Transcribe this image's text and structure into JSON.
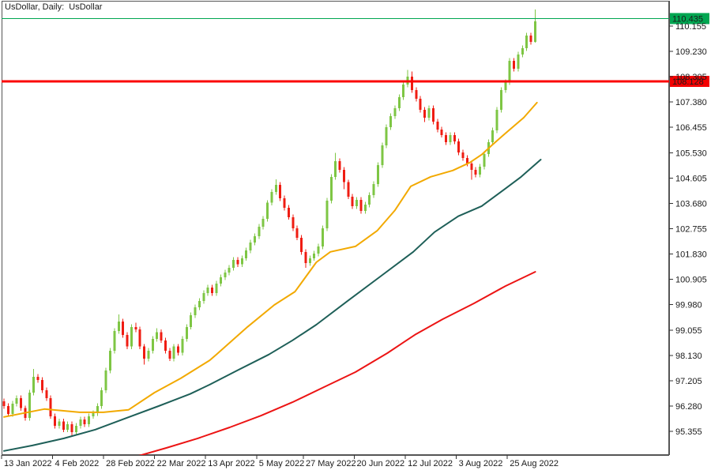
{
  "window": {
    "title": "UsDollar, Daily:  UsDollar"
  },
  "colors": {
    "background": "#FFFFFF",
    "border": "#555555",
    "candle_up": "#7EC644",
    "candle_down": "#EF1C12",
    "ma_fast": "#F2A900",
    "ma_mid": "#1E5F58",
    "ma_slow": "#EC1414",
    "level_green": "#00A651",
    "level_red": "#FB0505",
    "badge_green_bg": "#00A651",
    "badge_red_bg": "#F40000",
    "badge_text": "#FFFFFF",
    "axis_text": "#1a1a1a"
  },
  "chart_data": {
    "type": "candlestick",
    "symbol": "UsDollar",
    "timeframe": "Daily",
    "price_range": [
      94.49,
      110.645
    ],
    "y_axis": {
      "tick_labels": [
        "110.155",
        "109.230",
        "108.305",
        "107.380",
        "106.455",
        "105.530",
        "104.605",
        "103.680",
        "102.755",
        "101.830",
        "100.905",
        "99.980",
        "99.055",
        "98.130",
        "97.205",
        "96.280",
        "95.355"
      ]
    },
    "x_axis": {
      "labels": [
        {
          "text": "13 Jan 2022",
          "bar": 0
        },
        {
          "text": "4 Feb 2022",
          "bar": 12
        },
        {
          "text": "28 Feb 2022",
          "bar": 24
        },
        {
          "text": "22 Mar 2022",
          "bar": 36
        },
        {
          "text": "13 Apr 2022",
          "bar": 48
        },
        {
          "text": "5 May 2022",
          "bar": 60
        },
        {
          "text": "27 May 2022",
          "bar": 71
        },
        {
          "text": "20 Jun 2022",
          "bar": 83
        },
        {
          "text": "12 Jul 2022",
          "bar": 95
        },
        {
          "text": "3 Aug 2022",
          "bar": 107
        },
        {
          "text": "25 Aug 2022",
          "bar": 119
        }
      ]
    },
    "levels": [
      {
        "value": 110.435,
        "label": "110.435",
        "color_key": "level_green",
        "badge_key": "badge_green_bg",
        "width": 1
      },
      {
        "value": 108.128,
        "label": "108.128",
        "color_key": "level_red",
        "badge_key": "badge_red_bg",
        "width": 3
      }
    ],
    "candles": [
      [
        96.45,
        96.55,
        96.18,
        96.28
      ],
      [
        96.28,
        96.38,
        95.89,
        95.99
      ],
      [
        95.99,
        96.47,
        95.89,
        96.37
      ],
      [
        96.37,
        96.67,
        96.27,
        96.57
      ],
      [
        96.57,
        96.67,
        96.1,
        96.2
      ],
      [
        96.2,
        96.3,
        95.75,
        95.85
      ],
      [
        95.85,
        96.87,
        95.75,
        96.77
      ],
      [
        96.77,
        97.63,
        96.67,
        97.35
      ],
      [
        97.35,
        97.45,
        97.13,
        97.23
      ],
      [
        97.23,
        97.33,
        96.76,
        96.86
      ],
      [
        96.86,
        96.96,
        96.47,
        96.57
      ],
      [
        96.57,
        96.67,
        95.81,
        95.91
      ],
      [
        95.91,
        96.01,
        95.46,
        95.56
      ],
      [
        95.56,
        95.81,
        95.46,
        95.71
      ],
      [
        95.71,
        95.81,
        95.32,
        95.42
      ],
      [
        95.42,
        95.72,
        95.32,
        95.62
      ],
      [
        95.62,
        95.72,
        95.18,
        95.33
      ],
      [
        95.33,
        95.66,
        95.23,
        95.56
      ],
      [
        95.56,
        95.89,
        95.46,
        95.79
      ],
      [
        95.79,
        95.89,
        95.52,
        95.62
      ],
      [
        95.62,
        96.01,
        95.52,
        95.91
      ],
      [
        95.91,
        96.12,
        95.81,
        96.02
      ],
      [
        96.02,
        96.38,
        95.92,
        96.28
      ],
      [
        96.28,
        96.96,
        96.18,
        96.86
      ],
      [
        96.86,
        97.68,
        96.76,
        97.58
      ],
      [
        97.58,
        98.4,
        97.48,
        98.3
      ],
      [
        98.3,
        99.12,
        98.2,
        99.02
      ],
      [
        99.02,
        99.62,
        98.92,
        99.37
      ],
      [
        99.37,
        99.47,
        98.78,
        98.88
      ],
      [
        98.88,
        98.98,
        98.35,
        98.45
      ],
      [
        98.45,
        99.27,
        98.35,
        99.17
      ],
      [
        99.17,
        99.32,
        98.98,
        99.08
      ],
      [
        99.08,
        99.18,
        98.35,
        98.45
      ],
      [
        98.45,
        98.55,
        97.8,
        98.01
      ],
      [
        98.01,
        98.4,
        97.91,
        98.3
      ],
      [
        98.3,
        98.83,
        98.2,
        98.73
      ],
      [
        98.73,
        99.12,
        98.63,
        98.97
      ],
      [
        98.97,
        99.07,
        98.58,
        98.68
      ],
      [
        98.68,
        98.78,
        98.2,
        98.3
      ],
      [
        98.3,
        98.4,
        97.92,
        98.01
      ],
      [
        98.01,
        98.55,
        97.91,
        98.45
      ],
      [
        98.45,
        98.55,
        98.12,
        98.22
      ],
      [
        98.22,
        98.83,
        98.12,
        98.73
      ],
      [
        98.73,
        99.27,
        98.63,
        99.17
      ],
      [
        99.17,
        99.7,
        99.07,
        99.6
      ],
      [
        99.6,
        99.99,
        99.5,
        99.89
      ],
      [
        99.89,
        100.22,
        99.79,
        100.12
      ],
      [
        100.12,
        100.51,
        100.02,
        100.41
      ],
      [
        100.41,
        100.71,
        100.31,
        100.61
      ],
      [
        100.61,
        100.71,
        100.31,
        100.41
      ],
      [
        100.41,
        100.85,
        100.31,
        100.75
      ],
      [
        100.75,
        101.08,
        100.65,
        100.98
      ],
      [
        100.98,
        101.26,
        100.88,
        101.16
      ],
      [
        101.16,
        101.43,
        101.06,
        101.33
      ],
      [
        101.33,
        101.72,
        101.23,
        101.62
      ],
      [
        101.62,
        101.72,
        101.35,
        101.45
      ],
      [
        101.45,
        101.78,
        101.35,
        101.68
      ],
      [
        101.68,
        102.06,
        101.58,
        101.96
      ],
      [
        101.96,
        102.35,
        101.86,
        102.25
      ],
      [
        102.25,
        102.58,
        102.15,
        102.48
      ],
      [
        102.48,
        102.93,
        102.38,
        102.83
      ],
      [
        102.83,
        103.22,
        102.73,
        103.12
      ],
      [
        103.12,
        103.8,
        103.02,
        103.7
      ],
      [
        103.7,
        104.2,
        103.6,
        104.1
      ],
      [
        104.1,
        104.56,
        104.0,
        104.36
      ],
      [
        104.36,
        104.46,
        103.77,
        103.87
      ],
      [
        103.87,
        103.97,
        103.42,
        103.52
      ],
      [
        103.52,
        103.62,
        103.08,
        103.18
      ],
      [
        103.18,
        103.28,
        102.67,
        102.77
      ],
      [
        102.77,
        102.87,
        102.33,
        102.43
      ],
      [
        102.43,
        102.53,
        101.81,
        101.91
      ],
      [
        101.91,
        102.01,
        101.33,
        101.5
      ],
      [
        101.5,
        101.78,
        101.4,
        101.68
      ],
      [
        101.68,
        101.95,
        101.58,
        101.85
      ],
      [
        101.85,
        102.21,
        101.75,
        102.11
      ],
      [
        102.11,
        102.87,
        102.01,
        102.77
      ],
      [
        102.77,
        103.88,
        102.67,
        103.78
      ],
      [
        103.78,
        104.75,
        103.68,
        104.65
      ],
      [
        104.65,
        105.52,
        104.55,
        105.22
      ],
      [
        105.22,
        105.32,
        104.81,
        104.91
      ],
      [
        104.91,
        105.01,
        104.2,
        104.45
      ],
      [
        104.45,
        104.55,
        103.83,
        103.93
      ],
      [
        103.93,
        104.03,
        103.48,
        103.58
      ],
      [
        103.58,
        103.91,
        103.48,
        103.81
      ],
      [
        103.81,
        103.91,
        103.31,
        103.41
      ],
      [
        103.41,
        103.74,
        103.31,
        103.64
      ],
      [
        103.64,
        104.08,
        103.54,
        103.98
      ],
      [
        103.98,
        104.49,
        103.88,
        104.39
      ],
      [
        104.39,
        105.18,
        104.29,
        105.08
      ],
      [
        105.08,
        105.9,
        104.98,
        105.8
      ],
      [
        105.8,
        106.56,
        105.7,
        106.46
      ],
      [
        106.46,
        106.97,
        106.36,
        106.87
      ],
      [
        106.87,
        107.26,
        106.77,
        107.16
      ],
      [
        107.16,
        107.66,
        107.06,
        107.56
      ],
      [
        107.56,
        108.12,
        107.46,
        108.02
      ],
      [
        108.02,
        108.56,
        107.92,
        108.31
      ],
      [
        108.31,
        108.5,
        107.72,
        107.82
      ],
      [
        107.82,
        107.92,
        107.4,
        107.5
      ],
      [
        107.5,
        107.6,
        107.0,
        107.1
      ],
      [
        107.1,
        107.2,
        106.65,
        106.81
      ],
      [
        106.81,
        107.26,
        106.71,
        107.16
      ],
      [
        107.16,
        107.26,
        106.57,
        106.67
      ],
      [
        106.67,
        106.77,
        106.28,
        106.38
      ],
      [
        106.38,
        106.48,
        106.08,
        106.18
      ],
      [
        106.18,
        106.28,
        105.82,
        105.92
      ],
      [
        105.92,
        106.28,
        105.82,
        106.18
      ],
      [
        106.18,
        106.28,
        105.84,
        105.94
      ],
      [
        105.94,
        106.04,
        105.44,
        105.54
      ],
      [
        105.54,
        105.64,
        105.24,
        105.34
      ],
      [
        105.34,
        105.44,
        105.04,
        105.14
      ],
      [
        105.14,
        105.24,
        104.55,
        104.91
      ],
      [
        104.91,
        105.01,
        104.63,
        104.73
      ],
      [
        104.73,
        105.12,
        104.63,
        105.02
      ],
      [
        105.02,
        105.58,
        104.92,
        105.48
      ],
      [
        105.48,
        106.02,
        105.38,
        105.92
      ],
      [
        105.92,
        106.45,
        105.82,
        106.35
      ],
      [
        106.35,
        107.2,
        106.25,
        107.1
      ],
      [
        107.1,
        107.92,
        107.0,
        107.82
      ],
      [
        107.82,
        108.21,
        107.72,
        108.11
      ],
      [
        108.11,
        108.99,
        108.01,
        108.89
      ],
      [
        108.89,
        108.99,
        108.5,
        108.6
      ],
      [
        108.6,
        109.22,
        108.5,
        109.12
      ],
      [
        109.12,
        109.45,
        109.02,
        109.35
      ],
      [
        109.35,
        109.91,
        109.25,
        109.81
      ],
      [
        109.81,
        109.91,
        109.48,
        109.58
      ],
      [
        109.58,
        110.76,
        109.55,
        110.33
      ]
    ],
    "moving_averages": [
      {
        "name": "ma-fast",
        "color_key": "ma_fast",
        "points": [
          [
            0,
            95.88
          ],
          [
            9.5,
            96.17
          ],
          [
            17.8,
            96.05
          ],
          [
            23.4,
            96.05
          ],
          [
            29.3,
            96.14
          ],
          [
            35.4,
            96.77
          ],
          [
            41.6,
            97.29
          ],
          [
            48.4,
            97.95
          ],
          [
            49.9,
            98.15
          ],
          [
            57.3,
            99.17
          ],
          [
            63.6,
            99.97
          ],
          [
            68.5,
            100.46
          ],
          [
            73.5,
            101.53
          ],
          [
            76.8,
            101.91
          ],
          [
            82.7,
            102.11
          ],
          [
            87.8,
            102.68
          ],
          [
            92,
            103.43
          ],
          [
            95.7,
            104.3
          ],
          [
            100.4,
            104.65
          ],
          [
            105.6,
            104.88
          ],
          [
            109.6,
            105.17
          ],
          [
            112.4,
            105.46
          ],
          [
            114.8,
            105.8
          ],
          [
            118,
            106.24
          ],
          [
            122.3,
            106.81
          ],
          [
            125.4,
            107.36
          ]
        ]
      },
      {
        "name": "ma-mid",
        "color_key": "ma_mid",
        "points": [
          [
            0,
            94.64
          ],
          [
            6.7,
            94.84
          ],
          [
            14.1,
            95.1
          ],
          [
            21.5,
            95.42
          ],
          [
            28.9,
            95.85
          ],
          [
            36.4,
            96.28
          ],
          [
            43.8,
            96.72
          ],
          [
            48.4,
            97.06
          ],
          [
            54.9,
            97.58
          ],
          [
            62.3,
            98.16
          ],
          [
            67.9,
            98.68
          ],
          [
            73.5,
            99.25
          ],
          [
            80.9,
            100.12
          ],
          [
            88.3,
            100.98
          ],
          [
            96.3,
            101.91
          ],
          [
            101.3,
            102.63
          ],
          [
            106.9,
            103.21
          ],
          [
            112.4,
            103.58
          ],
          [
            118,
            104.22
          ],
          [
            121.7,
            104.65
          ],
          [
            126.3,
            105.28
          ]
        ]
      },
      {
        "name": "ma-slow",
        "color_key": "ma_slow",
        "points": [
          [
            31.7,
            94.46
          ],
          [
            38.2,
            94.75
          ],
          [
            45.6,
            95.1
          ],
          [
            53.1,
            95.5
          ],
          [
            60.5,
            95.93
          ],
          [
            67.9,
            96.42
          ],
          [
            75.3,
            96.97
          ],
          [
            82.7,
            97.52
          ],
          [
            90.2,
            98.21
          ],
          [
            96.7,
            98.88
          ],
          [
            103.2,
            99.45
          ],
          [
            110.6,
            100.03
          ],
          [
            118,
            100.66
          ],
          [
            125,
            101.18
          ]
        ]
      }
    ]
  }
}
